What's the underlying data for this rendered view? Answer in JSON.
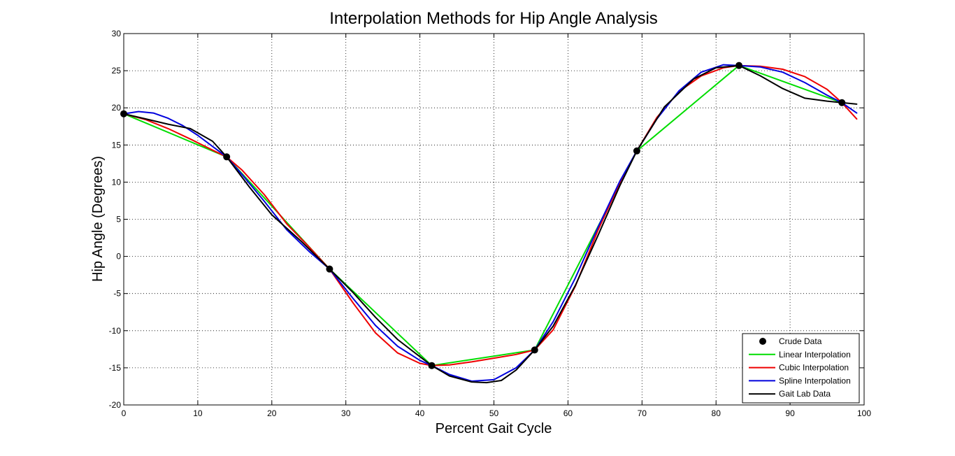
{
  "chart_data": {
    "type": "line",
    "title": "Interpolation Methods for Hip Angle Analysis",
    "xlabel": "Percent Gait Cycle",
    "ylabel": "Hip Angle (Degrees)",
    "xlim": [
      0,
      100
    ],
    "ylim": [
      -20,
      30
    ],
    "xticks": [
      "0",
      "10",
      "20",
      "30",
      "40",
      "50",
      "60",
      "70",
      "80",
      "90",
      "100"
    ],
    "yticks": [
      "-20",
      "-15",
      "-10",
      "-5",
      "0",
      "5",
      "10",
      "15",
      "20",
      "25",
      "30"
    ],
    "grid": true,
    "legend_position": "bottom-right",
    "series": [
      {
        "name": "Crude Data",
        "style": "markers",
        "color": "#000000",
        "x": [
          0,
          13.9,
          27.8,
          41.6,
          55.5,
          69.3,
          83.1,
          97.0
        ],
        "y": [
          19.2,
          13.4,
          -1.7,
          -14.7,
          -12.6,
          14.2,
          25.7,
          20.7
        ]
      },
      {
        "name": "Linear Interpolation",
        "style": "line",
        "color": "#00dd00",
        "x": [
          0,
          13.9,
          27.8,
          41.6,
          55.5,
          69.3,
          83.1,
          97.0
        ],
        "y": [
          19.2,
          13.4,
          -1.7,
          -14.7,
          -12.6,
          14.2,
          25.7,
          20.7
        ]
      },
      {
        "name": "Cubic Interpolation",
        "style": "line",
        "color": "#ee0000",
        "x": [
          0,
          3,
          6,
          9,
          12,
          13.9,
          16,
          19,
          22,
          25,
          27.8,
          31,
          34,
          37,
          40,
          41.6,
          44,
          47,
          50,
          53,
          55.5,
          58,
          61,
          64,
          67,
          69.3,
          72,
          75,
          78,
          81,
          83.1,
          86,
          89,
          92,
          95,
          97.0,
          99
        ],
        "y": [
          19.2,
          18.4,
          17.2,
          15.8,
          14.3,
          13.4,
          11.6,
          8.3,
          4.4,
          1.3,
          -1.7,
          -6.3,
          -10.3,
          -13.0,
          -14.4,
          -14.7,
          -14.6,
          -14.2,
          -13.7,
          -13.2,
          -12.6,
          -9.9,
          -4.0,
          3.4,
          9.9,
          14.2,
          18.7,
          22.2,
          24.3,
          25.4,
          25.7,
          25.6,
          25.2,
          24.2,
          22.5,
          20.7,
          18.5
        ]
      },
      {
        "name": "Spline Interpolation",
        "style": "line",
        "color": "#0000dd",
        "x": [
          0,
          2,
          4,
          6,
          8,
          10,
          12,
          13.9,
          16,
          19,
          22,
          25,
          27.8,
          31,
          34,
          37,
          40,
          41.6,
          44,
          47,
          50,
          53,
          55.5,
          58,
          61,
          64,
          67,
          69.3,
          72,
          75,
          78,
          81,
          83.1,
          86,
          89,
          92,
          95,
          97.0,
          99
        ],
        "y": [
          19.2,
          19.5,
          19.3,
          18.6,
          17.6,
          16.3,
          14.8,
          13.4,
          11.0,
          7.4,
          3.6,
          0.7,
          -1.7,
          -5.7,
          -9.3,
          -12.1,
          -14.0,
          -14.7,
          -15.9,
          -16.8,
          -16.6,
          -15.0,
          -12.6,
          -8.8,
          -2.9,
          3.8,
          10.1,
          14.2,
          18.5,
          22.3,
          24.8,
          25.8,
          25.7,
          25.5,
          24.8,
          23.4,
          21.7,
          20.7,
          19.3
        ]
      },
      {
        "name": "Gait Lab Data",
        "style": "line",
        "color": "#000000",
        "x": [
          0,
          3,
          6,
          9,
          12,
          13.9,
          17,
          20,
          24,
          27.8,
          31,
          34,
          37,
          40,
          41.6,
          44,
          47,
          49,
          51,
          53,
          55.5,
          58,
          61,
          64,
          67,
          69.3,
          73,
          77,
          80,
          83.1,
          86,
          89,
          92,
          95,
          97.0,
          99
        ],
        "y": [
          19.2,
          18.5,
          17.8,
          17.2,
          15.5,
          13.4,
          9.3,
          5.6,
          2.0,
          -1.7,
          -4.9,
          -8.2,
          -11.2,
          -13.5,
          -14.7,
          -16.1,
          -16.9,
          -17.0,
          -16.7,
          -15.3,
          -12.6,
          -9.4,
          -3.9,
          2.7,
          9.5,
          14.2,
          20.1,
          23.9,
          25.4,
          25.7,
          24.3,
          22.6,
          21.3,
          20.9,
          20.7,
          20.5
        ]
      }
    ]
  }
}
